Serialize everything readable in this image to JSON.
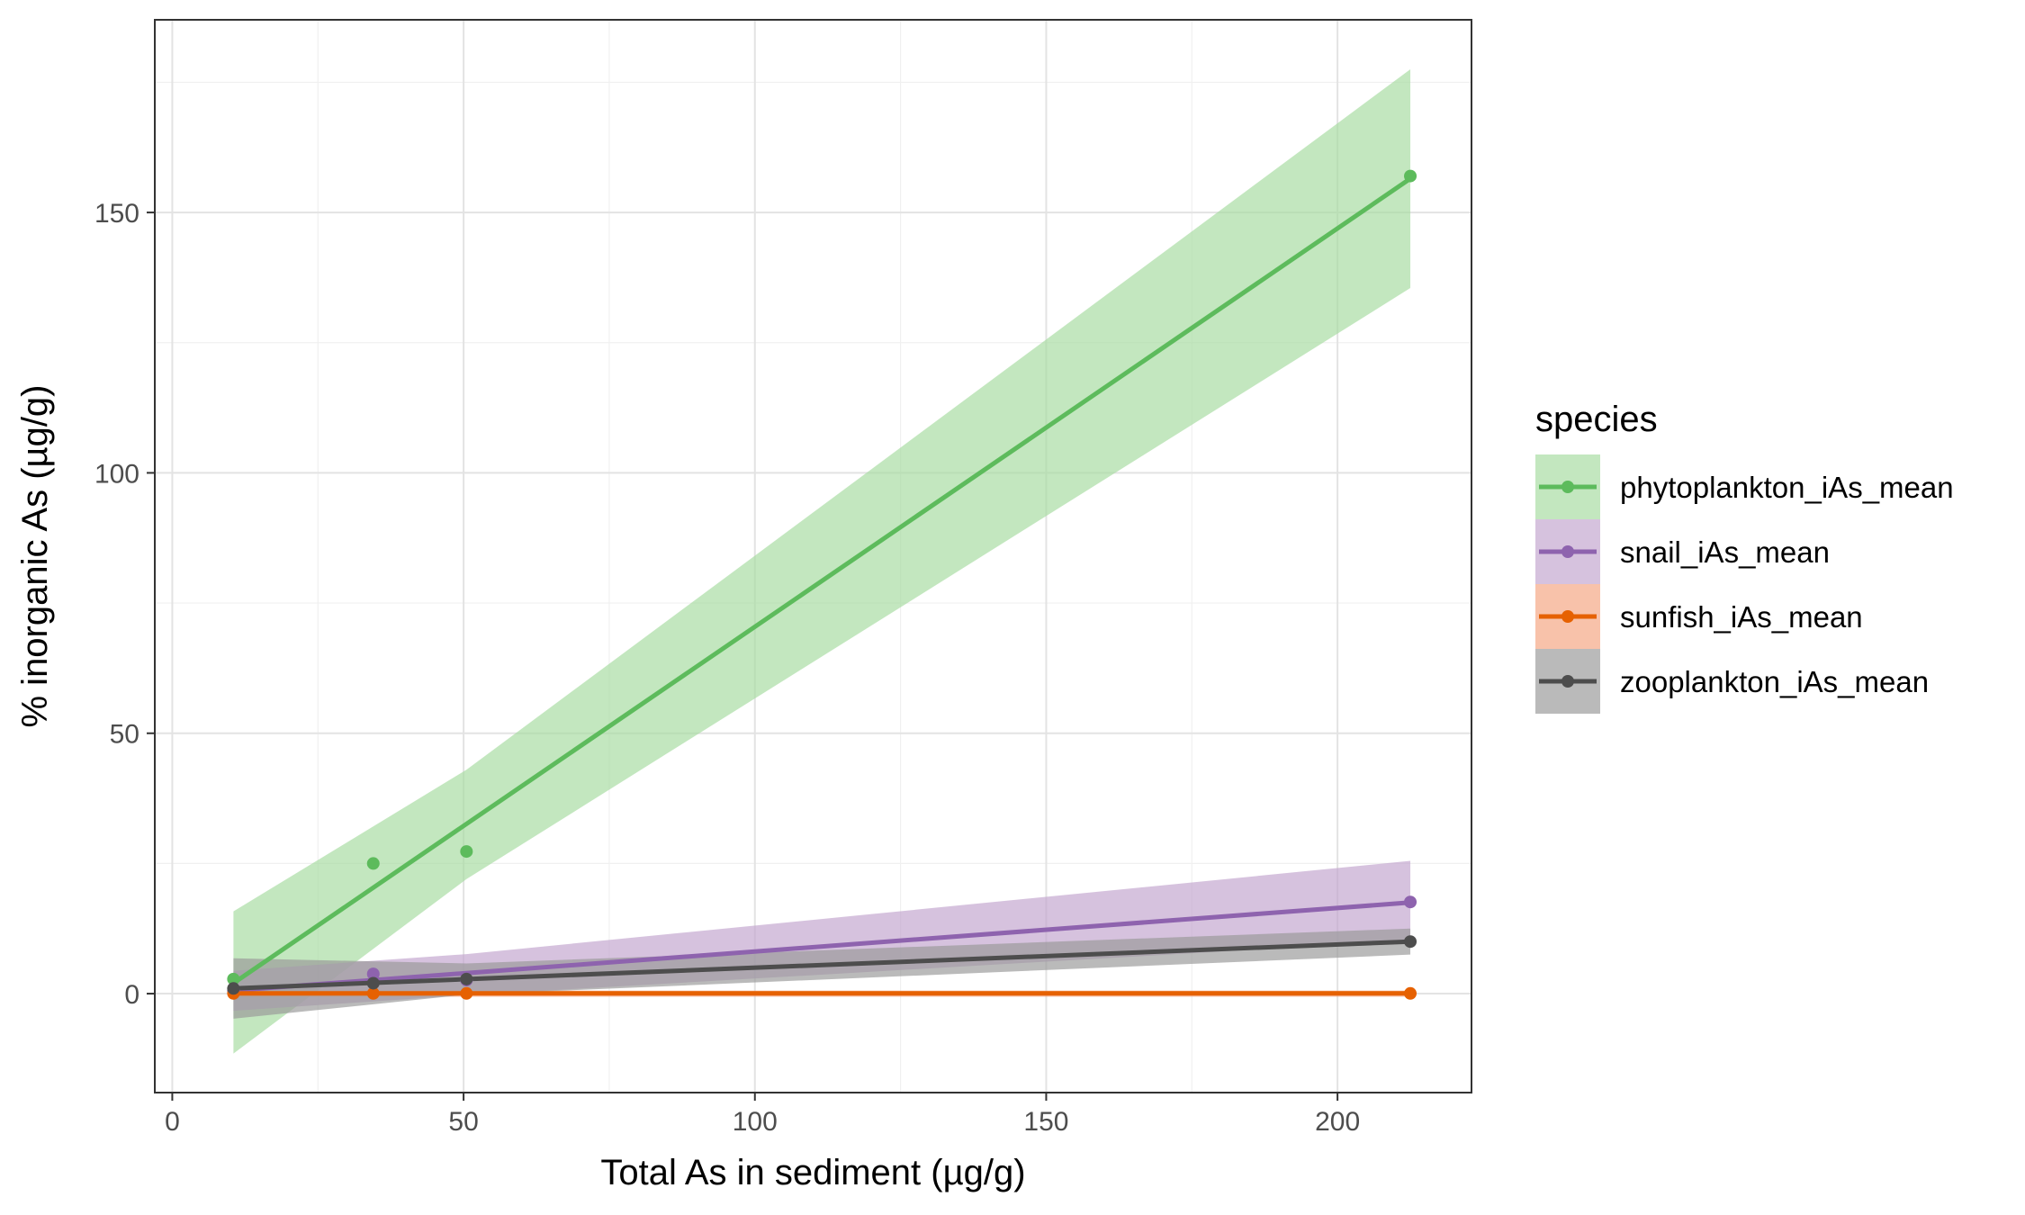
{
  "chart_data": {
    "type": "line",
    "xlabel": "Total As in sediment (µg/g)",
    "ylabel": "% inorganic As (µg/g)",
    "xlim": [
      -3,
      223
    ],
    "ylim": [
      -19,
      187
    ],
    "x_ticks": [
      0,
      50,
      100,
      150,
      200
    ],
    "x_tick_labels": [
      "0",
      "50",
      "100",
      "150",
      "200"
    ],
    "y_ticks": [
      0,
      50,
      100,
      150
    ],
    "y_tick_labels": [
      "0",
      "50",
      "100",
      "150"
    ],
    "grid": true,
    "legend": {
      "title": "species",
      "position": "right"
    },
    "series": [
      {
        "name": "phytoplankton_iAs_mean",
        "color": "#5DBB5C",
        "fill_color": "#A6DBA0",
        "points": [
          [
            10.5,
            2.8
          ],
          [
            34.5,
            25.0
          ],
          [
            50.5,
            27.3
          ],
          [
            212.5,
            157.0
          ]
        ],
        "fit": [
          [
            10.5,
            2.0
          ],
          [
            212.5,
            156.5
          ]
        ],
        "band_lower": [
          [
            10.5,
            -11.5
          ],
          [
            50.5,
            22.0
          ],
          [
            212.5,
            135.5
          ]
        ],
        "band_upper": [
          [
            10.5,
            15.8
          ],
          [
            50.5,
            43.0
          ],
          [
            212.5,
            177.5
          ]
        ]
      },
      {
        "name": "snail_iAs_mean",
        "color": "#8E63AE",
        "fill_color": "#C2A5CF",
        "points": [
          [
            10.5,
            0.6
          ],
          [
            34.5,
            3.8
          ],
          [
            50.5,
            2.6
          ],
          [
            212.5,
            17.6
          ]
        ],
        "fit": [
          [
            10.5,
            0.6
          ],
          [
            212.5,
            17.5
          ]
        ],
        "band_lower": [
          [
            10.5,
            -3.3
          ],
          [
            50.5,
            -0.3
          ],
          [
            212.5,
            10.2
          ]
        ],
        "band_upper": [
          [
            10.5,
            4.4
          ],
          [
            50.5,
            7.6
          ],
          [
            212.5,
            25.5
          ]
        ]
      },
      {
        "name": "sunfish_iAs_mean",
        "color": "#E66101",
        "fill_color": "#F4A582",
        "points": [
          [
            10.5,
            0.05
          ],
          [
            34.5,
            0.05
          ],
          [
            50.5,
            0.05
          ],
          [
            212.5,
            0.05
          ]
        ],
        "fit": [
          [
            10.5,
            0.05
          ],
          [
            212.5,
            0.05
          ]
        ],
        "band_lower": [
          [
            10.5,
            -0.6
          ],
          [
            212.5,
            -0.6
          ]
        ],
        "band_upper": [
          [
            10.5,
            0.6
          ],
          [
            212.5,
            0.6
          ]
        ]
      },
      {
        "name": "zooplankton_iAs_mean",
        "color": "#4D4D4D",
        "fill_color": "#999999",
        "points": [
          [
            10.5,
            1.0
          ],
          [
            34.5,
            2.0
          ],
          [
            50.5,
            2.8
          ],
          [
            212.5,
            10.0
          ]
        ],
        "fit": [
          [
            10.5,
            1.0
          ],
          [
            212.5,
            10.0
          ]
        ],
        "band_lower": [
          [
            10.5,
            -4.8
          ],
          [
            50.5,
            -0.2
          ],
          [
            212.5,
            7.5
          ]
        ],
        "band_upper": [
          [
            10.5,
            6.8
          ],
          [
            50.5,
            5.8
          ],
          [
            212.5,
            12.5
          ]
        ]
      }
    ]
  }
}
